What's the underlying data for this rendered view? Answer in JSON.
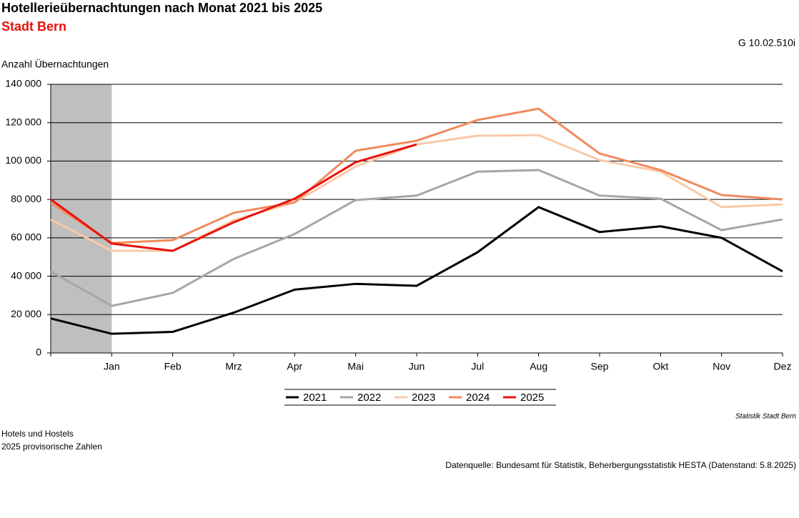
{
  "chart_data": {
    "type": "line",
    "title": "Hotellerieübernachtungen nach Monat 2021 bis 2025",
    "subtitle": "Stadt Bern",
    "chart_id": "G 10.02.510i",
    "y_label": "Anzahl Übernachtungen",
    "categories": [
      null,
      "Jan",
      "Feb",
      "Mrz",
      "Apr",
      "Mai",
      "Jun",
      "Jul",
      "Aug",
      "Sep",
      "Okt",
      "Nov",
      "Dez"
    ],
    "series": [
      {
        "name": "2021",
        "color": "#000000",
        "values": [
          18000,
          10000,
          11000,
          21000,
          33000,
          36000,
          35000,
          52500,
          76000,
          63000,
          66000,
          60000,
          42500
        ]
      },
      {
        "name": "2022",
        "color": "#a6a6a6",
        "values": [
          42500,
          24500,
          31300,
          49000,
          62000,
          79700,
          82000,
          94500,
          95300,
          82000,
          80400,
          64000,
          69600
        ]
      },
      {
        "name": "2023",
        "color": "#f8c9a8",
        "values": [
          69600,
          53200,
          53200,
          69200,
          78500,
          97200,
          108700,
          113200,
          113500,
          100500,
          94500,
          76000,
          77400
        ]
      },
      {
        "name": "2024",
        "color": "#f08a5d",
        "values": [
          78200,
          57300,
          58800,
          73000,
          78500,
          105400,
          110600,
          121400,
          127300,
          103900,
          95300,
          82300,
          80000
        ]
      },
      {
        "name": "2025",
        "color": "#e8120c",
        "values": [
          80000,
          57000,
          53200,
          68100,
          80400,
          99400,
          108700,
          null,
          null,
          null,
          null,
          null,
          null
        ]
      }
    ],
    "ylim": [
      0,
      140000
    ],
    "yticks": [
      0,
      {
        "value": 20000,
        "label": "20 000"
      },
      {
        "value": 40000,
        "label": "40 000"
      },
      {
        "value": 60000,
        "label": "60 000"
      },
      {
        "value": 80000,
        "label": "80 000"
      },
      {
        "value": 100000,
        "label": "100 000"
      },
      {
        "value": 120000,
        "label": "120 000"
      },
      {
        "value": 140000,
        "label": "140 000"
      }
    ],
    "grid": true,
    "legend": "bottom",
    "credit": "Statistik Stadt Bern",
    "notes": [
      "Hotels und Hostels",
      "2025 provisorische Zahlen"
    ],
    "source": "Datenquelle: Bundesamt für Statistik, Beherbergungsstatistik HESTA (Datenstand: 5.8.2025)"
  }
}
